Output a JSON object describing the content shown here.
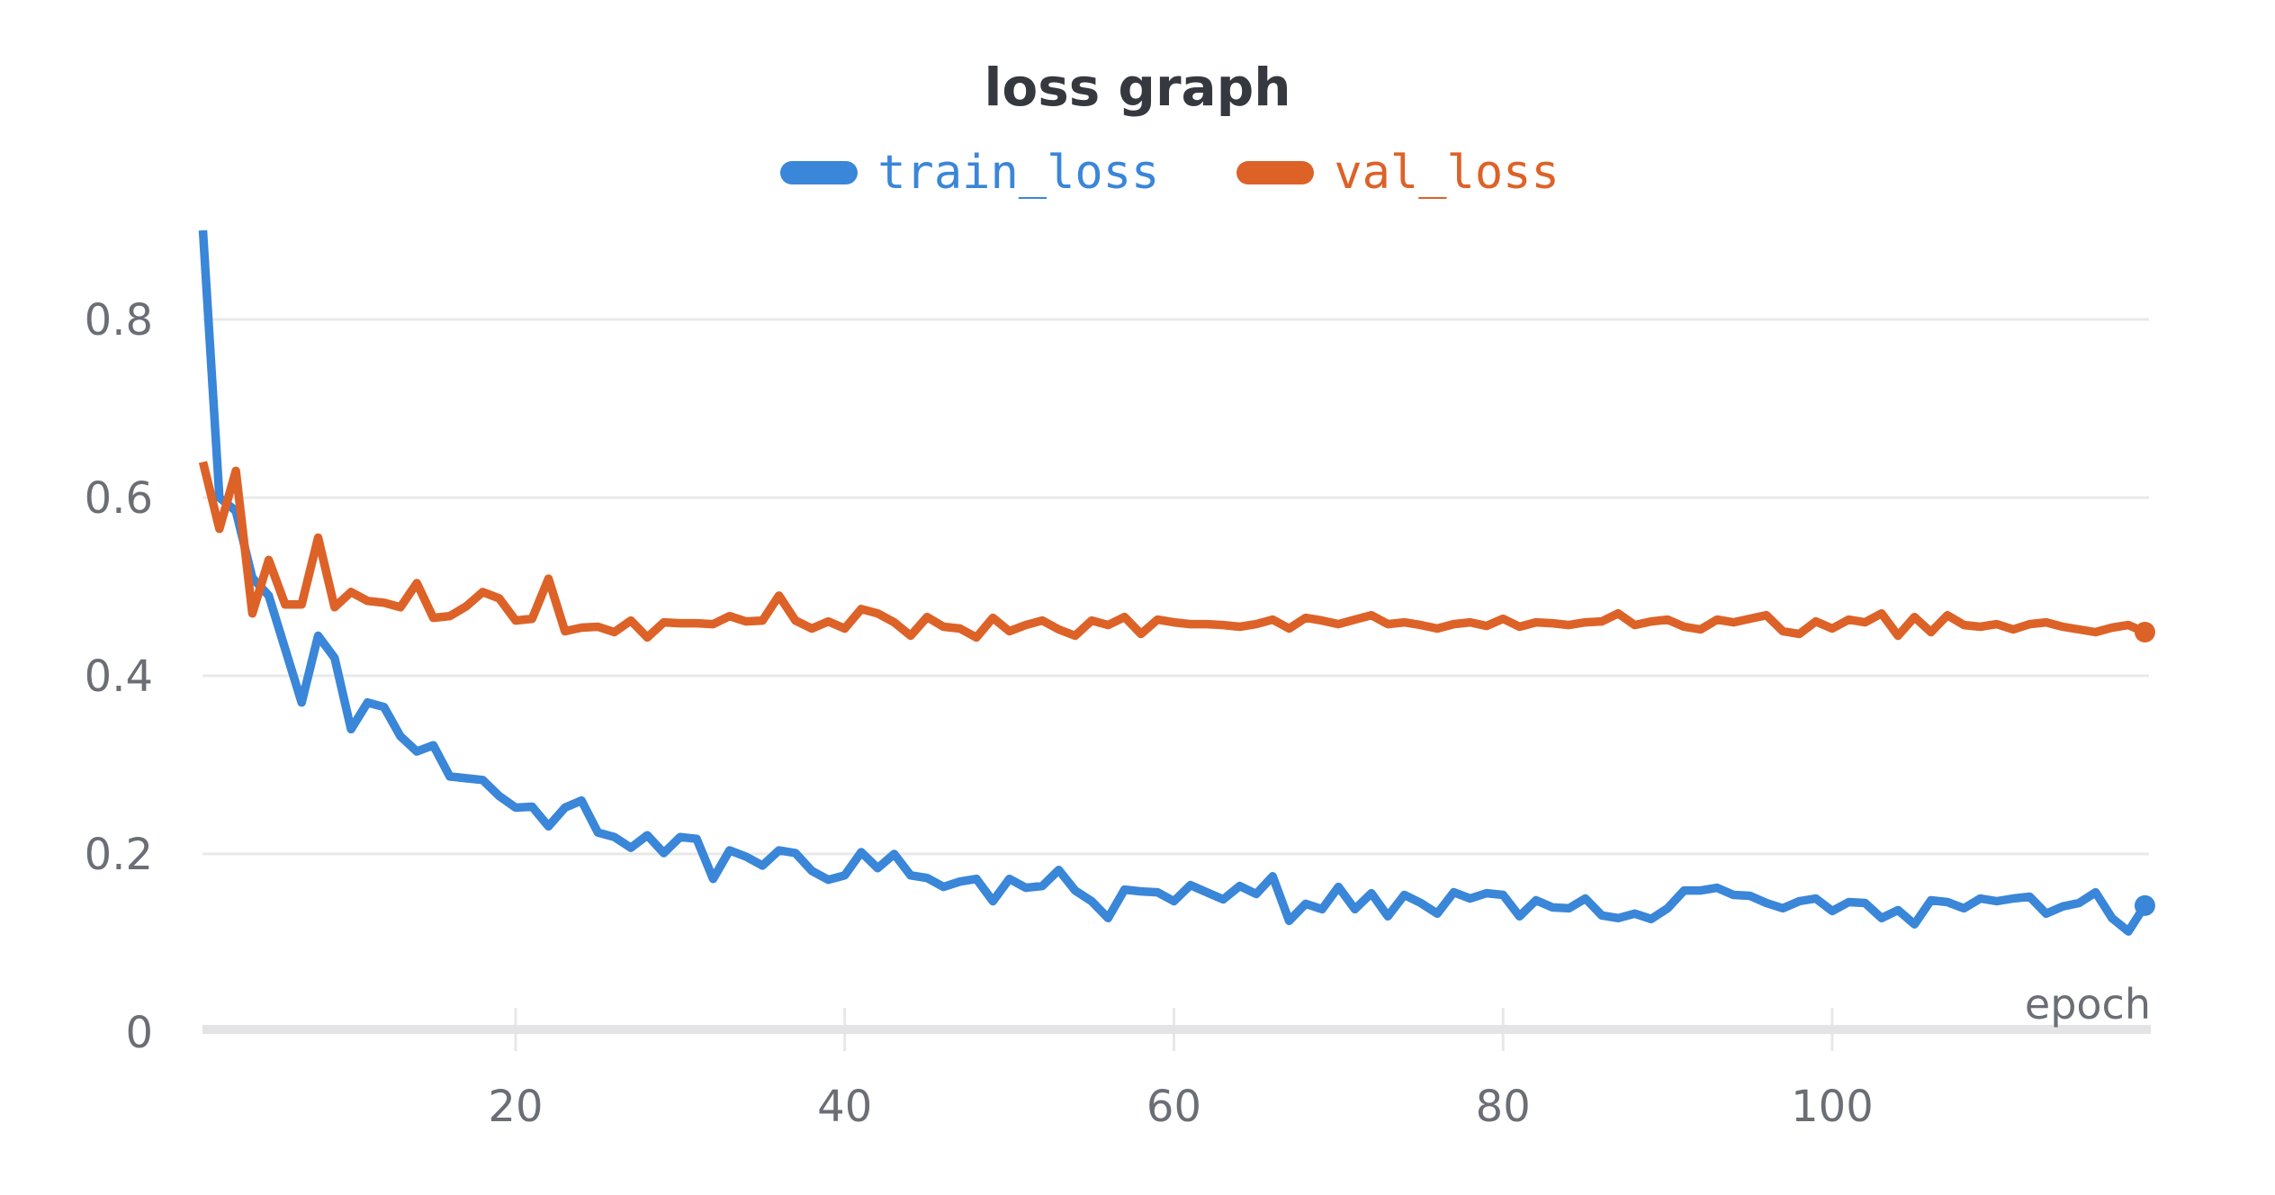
{
  "chart_data": {
    "type": "line",
    "title": "loss graph",
    "xlabel": "epoch",
    "ylabel": "",
    "x_ticks": [
      20,
      40,
      60,
      80,
      100
    ],
    "y_ticks": [
      0,
      0.2,
      0.4,
      0.6,
      0.8
    ],
    "xlim": [
      1,
      119
    ],
    "ylim": [
      0,
      0.95
    ],
    "grid": "horizontal",
    "legend_position": "top-center",
    "epochs": {
      "start": 1,
      "end": 119,
      "step": 1
    },
    "series": [
      {
        "name": "train_loss",
        "color": "#3a86d8",
        "end_marker": true,
        "final_value": 0.142,
        "values": [
          0.9,
          0.6,
          0.585,
          0.51,
          0.49,
          0.43,
          0.37,
          0.445,
          0.42,
          0.34,
          0.37,
          0.365,
          0.332,
          0.315,
          0.322,
          0.287,
          0.285,
          0.283,
          0.265,
          0.252,
          0.253,
          0.231,
          0.252,
          0.26,
          0.224,
          0.219,
          0.207,
          0.221,
          0.201,
          0.219,
          0.217,
          0.172,
          0.204,
          0.197,
          0.187,
          0.204,
          0.201,
          0.181,
          0.171,
          0.176,
          0.202,
          0.184,
          0.2,
          0.176,
          0.173,
          0.163,
          0.169,
          0.172,
          0.147,
          0.172,
          0.162,
          0.164,
          0.182,
          0.159,
          0.147,
          0.128,
          0.16,
          0.158,
          0.157,
          0.147,
          0.165,
          0.157,
          0.149,
          0.164,
          0.155,
          0.175,
          0.125,
          0.144,
          0.138,
          0.163,
          0.138,
          0.156,
          0.13,
          0.154,
          0.145,
          0.133,
          0.157,
          0.15,
          0.156,
          0.154,
          0.13,
          0.148,
          0.14,
          0.139,
          0.15,
          0.131,
          0.128,
          0.133,
          0.127,
          0.139,
          0.159,
          0.159,
          0.162,
          0.154,
          0.153,
          0.145,
          0.139,
          0.147,
          0.15,
          0.136,
          0.146,
          0.145,
          0.128,
          0.137,
          0.121,
          0.148,
          0.146,
          0.139,
          0.15,
          0.147,
          0.15,
          0.152,
          0.133,
          0.141,
          0.145,
          0.157,
          0.128,
          0.113,
          0.142
        ]
      },
      {
        "name": "val_loss",
        "color": "#dd6228",
        "end_marker": true,
        "final_value": 0.449,
        "values": [
          0.64,
          0.565,
          0.63,
          0.47,
          0.53,
          0.48,
          0.48,
          0.555,
          0.477,
          0.494,
          0.484,
          0.482,
          0.477,
          0.504,
          0.465,
          0.467,
          0.478,
          0.494,
          0.487,
          0.462,
          0.464,
          0.509,
          0.45,
          0.454,
          0.455,
          0.449,
          0.462,
          0.443,
          0.46,
          0.459,
          0.459,
          0.458,
          0.467,
          0.461,
          0.462,
          0.49,
          0.462,
          0.453,
          0.461,
          0.453,
          0.475,
          0.47,
          0.46,
          0.445,
          0.466,
          0.455,
          0.453,
          0.443,
          0.465,
          0.45,
          0.457,
          0.462,
          0.452,
          0.445,
          0.462,
          0.457,
          0.466,
          0.447,
          0.463,
          0.46,
          0.458,
          0.458,
          0.457,
          0.455,
          0.458,
          0.463,
          0.453,
          0.465,
          0.462,
          0.458,
          0.463,
          0.468,
          0.458,
          0.46,
          0.457,
          0.453,
          0.458,
          0.46,
          0.456,
          0.464,
          0.455,
          0.46,
          0.459,
          0.457,
          0.46,
          0.461,
          0.47,
          0.457,
          0.461,
          0.463,
          0.455,
          0.452,
          0.463,
          0.46,
          0.464,
          0.468,
          0.45,
          0.447,
          0.461,
          0.453,
          0.463,
          0.46,
          0.47,
          0.445,
          0.466,
          0.449,
          0.468,
          0.457,
          0.455,
          0.458,
          0.452,
          0.458,
          0.46,
          0.455,
          0.452,
          0.449,
          0.454,
          0.457,
          0.449
        ]
      }
    ],
    "colors": {
      "title_text": "#35393f",
      "tick_text": "#6b6e75",
      "gridline": "#e9e9e9",
      "axis_line": "#e4e4e6",
      "tick_mark": "#e7e7e8",
      "background": "#ffffff"
    }
  }
}
